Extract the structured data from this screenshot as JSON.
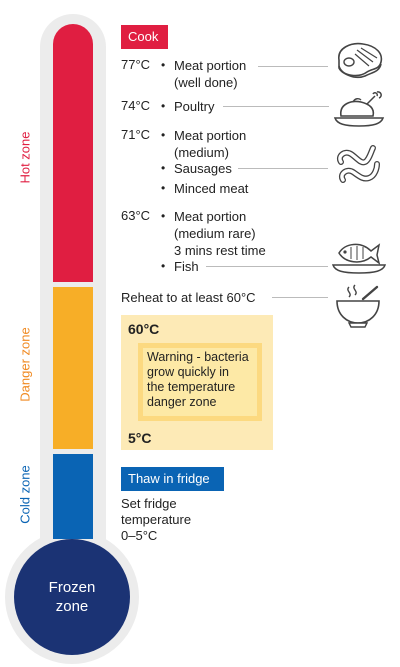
{
  "zones": {
    "hot": "Hot zone",
    "danger": "Danger zone",
    "cold": "Cold zone",
    "frozen_line1": "Frozen",
    "frozen_line2": "zone"
  },
  "colors": {
    "hot": "#e01e41",
    "danger": "#f7ae27",
    "danger_label": "#f08a22",
    "cold": "#0a64b4",
    "frozen": "#1b3374",
    "thermometer_shell": "#ececec"
  },
  "cook": {
    "tag": "Cook",
    "rows": [
      {
        "temp": "77°C",
        "items": [
          {
            "text": "Meat portion (well done)",
            "lines": [
              "Meat portion",
              "(well done)"
            ]
          }
        ]
      },
      {
        "temp": "74°C",
        "items": [
          {
            "text": "Poultry",
            "lines": [
              "Poultry"
            ]
          }
        ]
      },
      {
        "temp": "71°C",
        "items": [
          {
            "text": "Meat portion (medium)",
            "lines": [
              "Meat portion",
              "(medium)"
            ]
          },
          {
            "text": "Sausages",
            "lines": [
              "Sausages"
            ]
          },
          {
            "text": "Minced meat",
            "lines": [
              "Minced meat"
            ]
          }
        ]
      },
      {
        "temp": "63°C",
        "items": [
          {
            "text": "Meat portion (medium rare) 3 mins rest time",
            "lines": [
              "Meat portion",
              "(medium rare)",
              "3 mins rest time"
            ]
          },
          {
            "text": "Fish",
            "lines": [
              "Fish"
            ]
          }
        ]
      }
    ],
    "bullet": "•"
  },
  "reheat": "Reheat to at least 60°C",
  "danger": {
    "top_temp": "60°C",
    "warning_lines": [
      "Warning - bacteria",
      "grow quickly in",
      "the temperature",
      "danger zone"
    ],
    "bottom_temp": "5°C"
  },
  "thaw": {
    "tag": "Thaw in fridge",
    "lines": [
      "Set fridge",
      "temperature",
      "0–5°C"
    ]
  },
  "icons": [
    "steak-icon",
    "roast-chicken-icon",
    "sausages-icon",
    "fish-on-plate-icon",
    "soup-bowl-icon"
  ]
}
